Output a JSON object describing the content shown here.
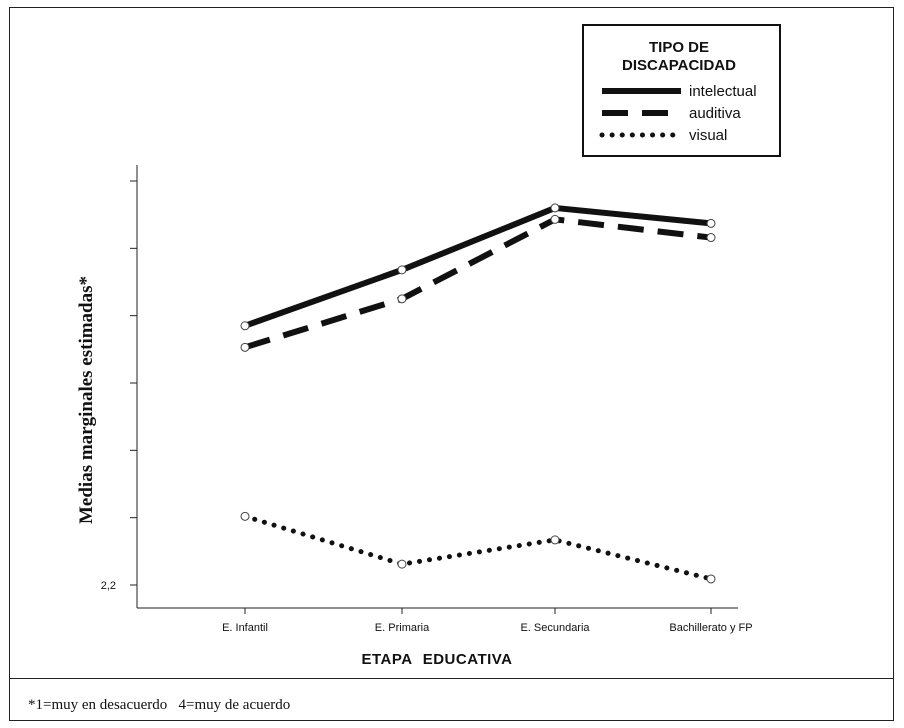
{
  "chart_data": {
    "type": "line",
    "title": "",
    "xlabel": "ETAPA  EDUCATIVA",
    "ylabel": "Medias marginales estimadas*",
    "categories": [
      "E. Infantil",
      "E. Primaria",
      "E. Secundaria",
      "Bachillerato y FP"
    ],
    "y_tick_labels": [
      "2,2"
    ],
    "ylim": [
      2.2,
      2.8
    ],
    "series": [
      {
        "name": "intelectual",
        "style": "solid",
        "values": [
          2.585,
          2.668,
          2.76,
          2.737
        ]
      },
      {
        "name": "auditiva",
        "style": "dashed",
        "values": [
          2.553,
          2.625,
          2.743,
          2.716
        ]
      },
      {
        "name": "visual",
        "style": "dotted",
        "values": [
          2.302,
          2.231,
          2.267,
          2.209
        ]
      }
    ],
    "legend": {
      "title_line1": "TIPO DE",
      "title_line2": "DISCAPACIDAD",
      "placement": "top-right"
    },
    "grid": false
  },
  "footnote": "*1=muy en desacuerdo   4=muy de acuerdo"
}
